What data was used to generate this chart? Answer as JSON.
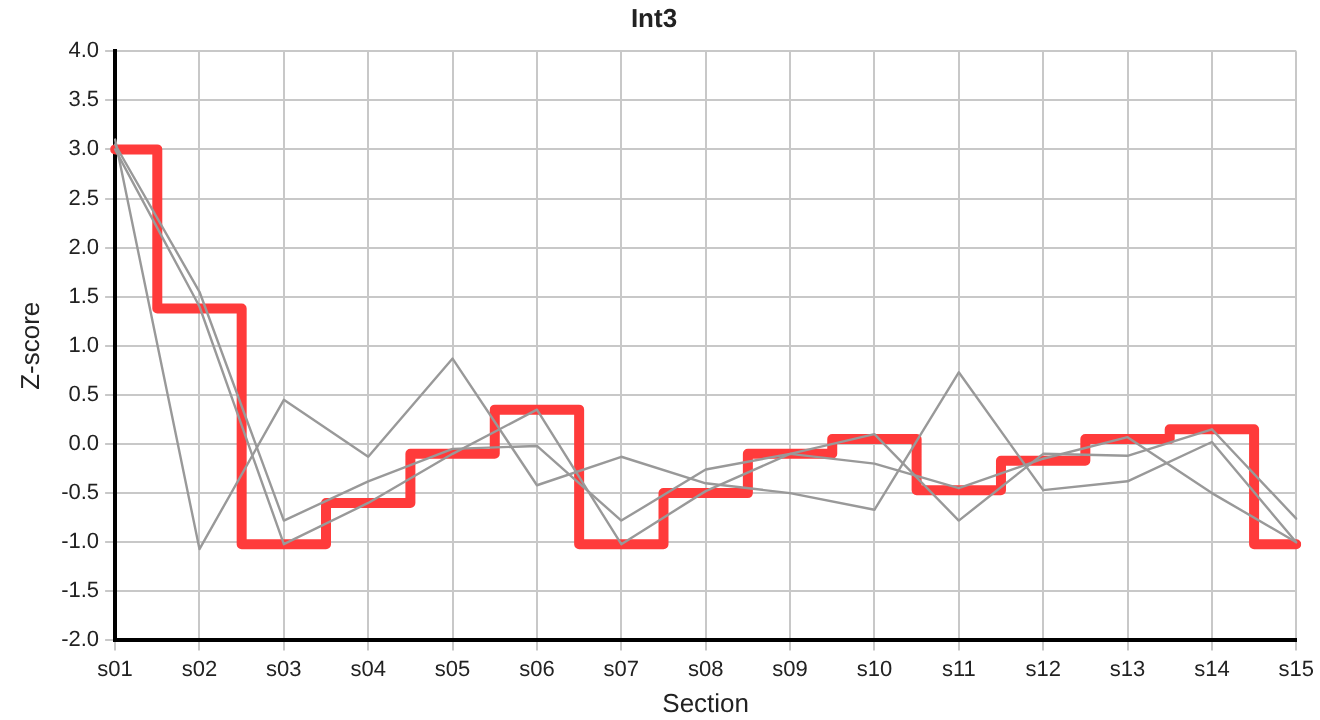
{
  "chart_data": {
    "type": "line",
    "title": "Int3",
    "xlabel": "Section",
    "ylabel": "Z-score",
    "categories": [
      "s01",
      "s02",
      "s03",
      "s04",
      "s05",
      "s06",
      "s07",
      "s08",
      "s09",
      "s10",
      "s11",
      "s12",
      "s13",
      "s14",
      "s15"
    ],
    "series": [
      {
        "color": "#999999",
        "values": [
          3.1,
          -1.07,
          0.45,
          -0.13,
          0.87,
          -0.42,
          -0.13,
          -0.4,
          -0.5,
          -0.67,
          0.73,
          -0.47,
          -0.38,
          0.02,
          -1.0
        ]
      },
      {
        "color": "#999999",
        "values": [
          3.05,
          1.55,
          -0.78,
          -0.38,
          -0.05,
          -0.02,
          -0.78,
          -0.26,
          -0.1,
          0.1,
          -0.78,
          -0.1,
          -0.12,
          0.15,
          -0.76
        ]
      },
      {
        "color": "#999999",
        "values": [
          3.0,
          1.4,
          -1.02,
          -0.6,
          -0.1,
          0.35,
          -1.02,
          -0.48,
          -0.1,
          -0.2,
          -0.45,
          -0.15,
          0.07,
          -0.5,
          -1.0
        ]
      },
      {
        "type": "step",
        "color": "#ff3b3b",
        "values": [
          3.0,
          1.38,
          -1.02,
          -0.6,
          -0.1,
          0.35,
          -1.02,
          -0.5,
          -0.1,
          0.05,
          -0.47,
          -0.17,
          0.05,
          0.15,
          -1.02
        ]
      }
    ],
    "ylim": [
      -2,
      4
    ],
    "yticks": [
      {
        "value": -2,
        "label": "-2.0"
      },
      {
        "value": -1.5,
        "label": "-1.5"
      },
      {
        "value": -1,
        "label": "-1.0"
      },
      {
        "value": -0.5,
        "label": "-0.5"
      },
      {
        "value": 0,
        "label": "0.0"
      },
      {
        "value": 0.5,
        "label": "0.5"
      },
      {
        "value": 1,
        "label": "1.0"
      },
      {
        "value": 1.5,
        "label": "1.5"
      },
      {
        "value": 2,
        "label": "2.0"
      },
      {
        "value": 2.5,
        "label": "2.5"
      },
      {
        "value": 3,
        "label": "3.0"
      },
      {
        "value": 3.5,
        "label": "3.5"
      },
      {
        "value": 4,
        "label": "4.0"
      }
    ],
    "grid": true,
    "legend": false,
    "marker": "none"
  }
}
